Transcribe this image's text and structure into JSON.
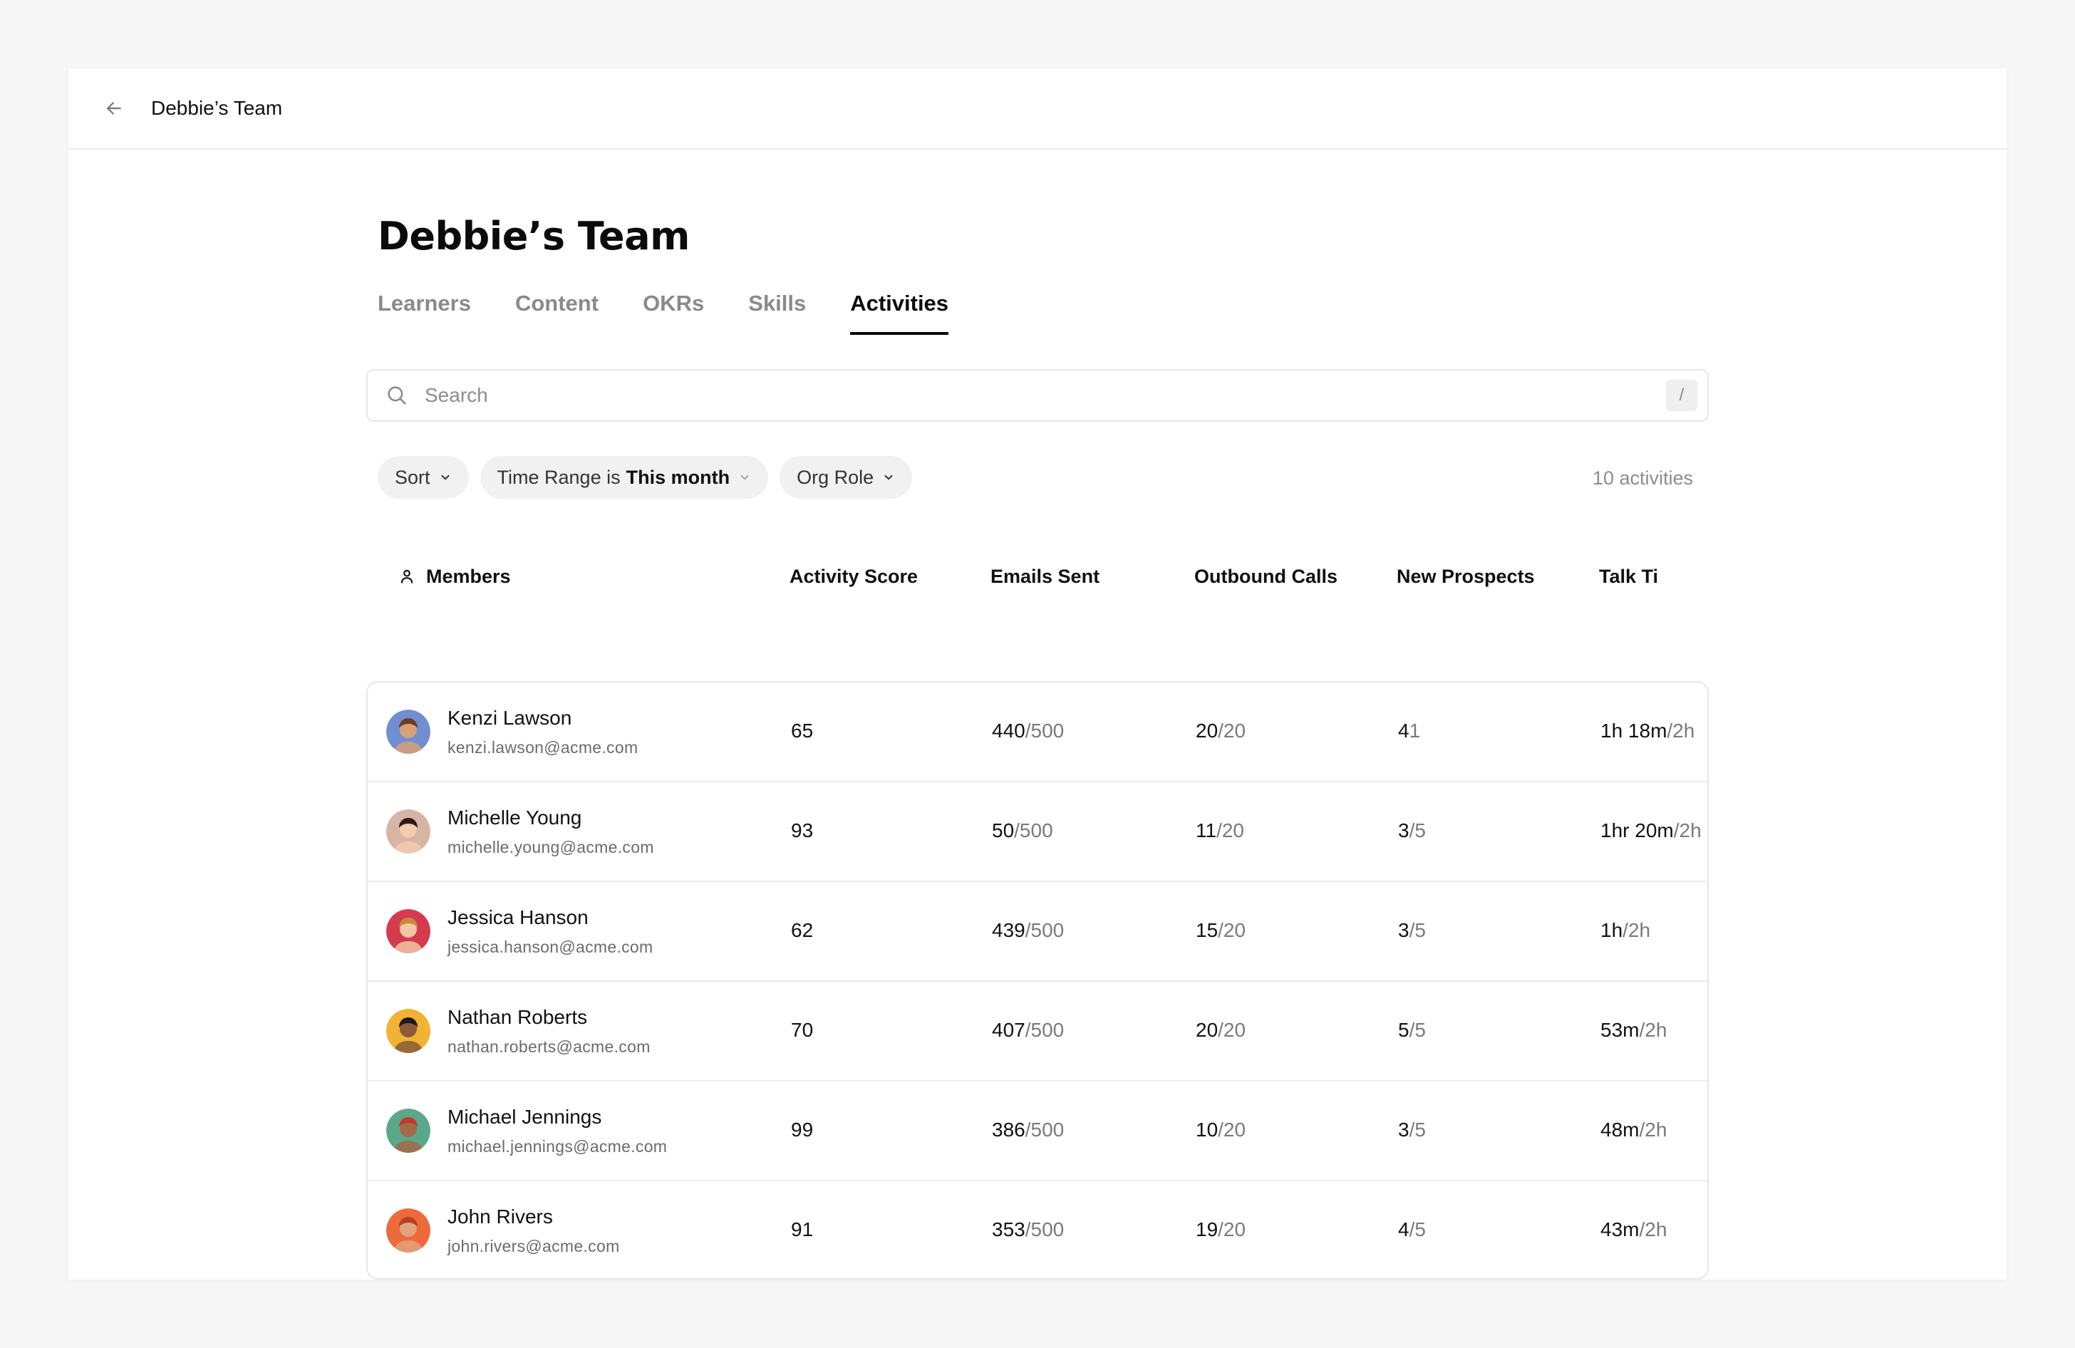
{
  "header": {
    "title": "Debbie’s Team"
  },
  "page": {
    "title": "Debbie’s Team",
    "tabs": [
      {
        "label": "Learners",
        "active": false
      },
      {
        "label": "Content",
        "active": false
      },
      {
        "label": "OKRs",
        "active": false
      },
      {
        "label": "Skills",
        "active": false
      },
      {
        "label": "Activities",
        "active": true
      }
    ]
  },
  "search": {
    "placeholder": "Search",
    "shortcut": "/"
  },
  "filters": {
    "sort": "Sort",
    "time_range_prefix": "Time Range is",
    "time_range_value": "This month",
    "org_role": "Org Role"
  },
  "activity_count": "10 activities",
  "columns": {
    "members": "Members",
    "activity_score": "Activity Score",
    "emails_sent": "Emails Sent",
    "outbound_calls": "Outbound Calls",
    "new_prospects": "New Prospects",
    "talk_time": "Talk Ti"
  },
  "rows": [
    {
      "name": "Kenzi Lawson",
      "email": "kenzi.lawson@acme.com",
      "score": "65",
      "emails": "440",
      "emails_total": "/500",
      "calls": "20",
      "calls_total": "/20",
      "prospects": "4",
      "prospects_total": "1",
      "talk": "1h 18m",
      "talk_total": "/2h",
      "avatar_bg": "#6f8fd0",
      "avatar_skin": "#d8a17a",
      "avatar_hair": "#6b3e24"
    },
    {
      "name": "Michelle Young",
      "email": "michelle.young@acme.com",
      "score": "93",
      "emails": "50",
      "emails_total": "/500",
      "calls": "11",
      "calls_total": "/20",
      "prospects": "3",
      "prospects_total": "/5",
      "talk": "1hr 20m",
      "talk_total": "/2h",
      "avatar_bg": "#d7b4a3",
      "avatar_skin": "#f2cbb0",
      "avatar_hair": "#2b1a14"
    },
    {
      "name": "Jessica Hanson",
      "email": "jessica.hanson@acme.com",
      "score": "62",
      "emails": "439",
      "emails_total": "/500",
      "calls": "15",
      "calls_total": "/20",
      "prospects": "3",
      "prospects_total": "/5",
      "talk": "1h",
      "talk_total": "/2h",
      "avatar_bg": "#d63a4e",
      "avatar_skin": "#f2c6a6",
      "avatar_hair": "#c98a3a"
    },
    {
      "name": "Nathan Roberts",
      "email": "nathan.roberts@acme.com",
      "score": "70",
      "emails": "407",
      "emails_total": "/500",
      "calls": "20",
      "calls_total": "/20",
      "prospects": "5",
      "prospects_total": "/5",
      "talk": "53m",
      "talk_total": "/2h",
      "avatar_bg": "#f2b233",
      "avatar_skin": "#8a5a3b",
      "avatar_hair": "#1e1a18"
    },
    {
      "name": "Michael Jennings",
      "email": "michael.jennings@acme.com",
      "score": "99",
      "emails": "386",
      "emails_total": "/500",
      "calls": "10",
      "calls_total": "/20",
      "prospects": "3",
      "prospects_total": "/5",
      "talk": "48m",
      "talk_total": "/2h",
      "avatar_bg": "#5aa88c",
      "avatar_skin": "#a5694a",
      "avatar_hair": "#c0392b"
    },
    {
      "name": "John Rivers",
      "email": "john.rivers@acme.com",
      "score": "91",
      "emails": "353",
      "emails_total": "/500",
      "calls": "19",
      "calls_total": "/20",
      "prospects": "4",
      "prospects_total": "/5",
      "talk": "43m",
      "talk_total": "/2h",
      "avatar_bg": "#ef6a3a",
      "avatar_skin": "#e3a27c",
      "avatar_hair": "#b5402a"
    }
  ]
}
